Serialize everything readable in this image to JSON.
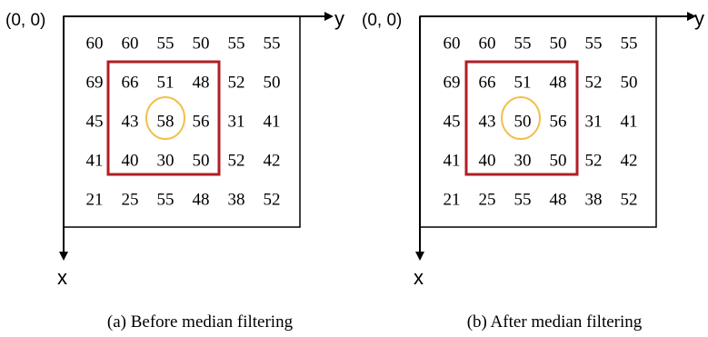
{
  "panels": [
    {
      "id": "a",
      "origin_label": "(0, 0)",
      "y_axis_label": "y",
      "x_axis_label": "x",
      "caption": "(a) Before median filtering",
      "grid": [
        [
          "60",
          "60",
          "55",
          "50",
          "55",
          "55"
        ],
        [
          "69",
          "66",
          "51",
          "48",
          "52",
          "50"
        ],
        [
          "45",
          "43",
          "58",
          "56",
          "31",
          "41"
        ],
        [
          "41",
          "40",
          "30",
          "50",
          "52",
          "42"
        ],
        [
          "21",
          "25",
          "55",
          "48",
          "38",
          "52"
        ]
      ],
      "center_value_color": "#e8303a"
    },
    {
      "id": "b",
      "origin_label": "(0, 0)",
      "y_axis_label": "y",
      "x_axis_label": "x",
      "caption": "(b) After median filtering",
      "grid": [
        [
          "60",
          "60",
          "55",
          "50",
          "55",
          "55"
        ],
        [
          "69",
          "66",
          "51",
          "48",
          "52",
          "50"
        ],
        [
          "45",
          "43",
          "50",
          "56",
          "31",
          "41"
        ],
        [
          "41",
          "40",
          "30",
          "50",
          "52",
          "42"
        ],
        [
          "21",
          "25",
          "55",
          "48",
          "38",
          "52"
        ]
      ],
      "center_value_color": "#3a8fd6"
    }
  ],
  "colors": {
    "window_border": "#b01e24",
    "center_circle": "#f2c04a",
    "frame": "#000000"
  }
}
